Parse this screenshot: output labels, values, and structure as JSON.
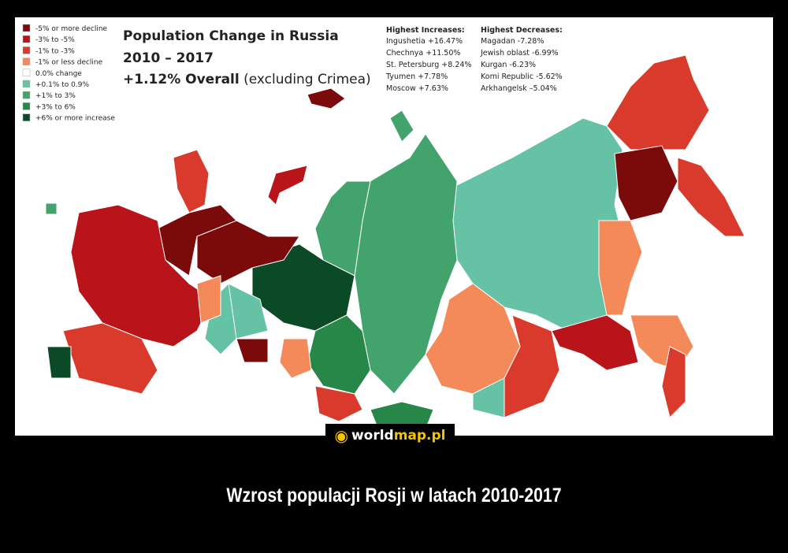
{
  "title": {
    "lines": [
      "Population Change in Russia",
      "2010 – 2017"
    ],
    "overall": "+1.12% Overall",
    "note": "(excluding Crimea)"
  },
  "legend": {
    "items": [
      {
        "label": "-5% or more decline",
        "color": "#7b0a0a"
      },
      {
        "label": "-3% to -5%",
        "color": "#b8141a"
      },
      {
        "label": "-1% to -3%",
        "color": "#d93a2b"
      },
      {
        "label": "-1% or less decline",
        "color": "#f4895a"
      },
      {
        "label": "0.0% change",
        "color": "#ffffff"
      },
      {
        "label": "+0.1% to 0.9%",
        "color": "#66c2a5"
      },
      {
        "label": "+1% to 3%",
        "color": "#43a36c"
      },
      {
        "label": "+3% to 6%",
        "color": "#268748"
      },
      {
        "label": "+6% or more increase",
        "color": "#0b4a26"
      }
    ]
  },
  "increases": {
    "header": "Highest Increases:",
    "items": [
      "Ingushetia +16.47%",
      "Chechnya +11.50%",
      "St. Petersburg +8.24%",
      "Tyumen +7.78%",
      "Moscow +7.63%"
    ]
  },
  "decreases": {
    "header": "Highest Decreases:",
    "items": [
      "Magadan -7.28%",
      "Jewish oblast -6.99%",
      "Kurgan -6.23%",
      "Komi Republic -5.62%",
      "Arkhangelsk –5.04%"
    ]
  },
  "logo": {
    "part1": "world",
    "part2": "map.pl"
  },
  "caption": "Wzrost populacji Rosji w latach 2010-2017"
}
